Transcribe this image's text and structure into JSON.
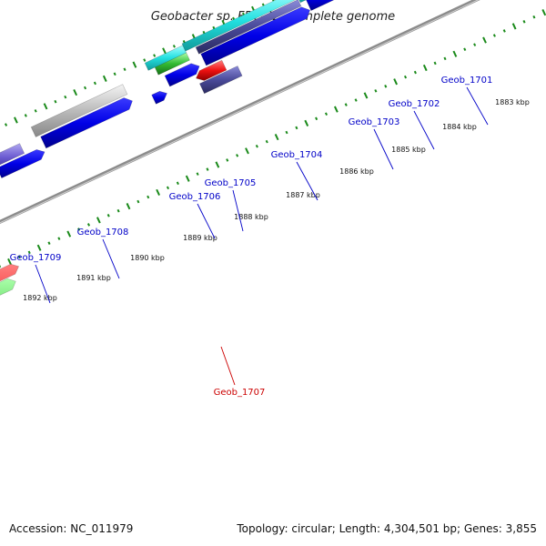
{
  "title": "Geobacter sp. FRC-32, complete genome",
  "footer": {
    "accession": "Accession: NC_011979",
    "summary": "Topology: circular; Length: 4,304,501 bp; Genes: 3,855"
  },
  "colors": {
    "backbone": "#8c8c8c",
    "tick": "#1a8a1a",
    "label_blue": "#0000c8",
    "label_red": "#cc0000",
    "cds_blue": "#0000e6",
    "cyan": "#22e0e0",
    "slate": "#4a4a9a",
    "green": "#33bb33",
    "red": "#ee1111",
    "gray": "#bbbbbb"
  },
  "kbp_labels": [
    "1883 kbp",
    "1884 kbp",
    "1885 kbp",
    "1886 kbp",
    "1887 kbp",
    "1888 kbp",
    "1889 kbp",
    "1890 kbp",
    "1891 kbp",
    "1892 kbp"
  ],
  "genes": [
    {
      "name": "Geob_1701",
      "strand": "+"
    },
    {
      "name": "Geob_1702",
      "strand": "+"
    },
    {
      "name": "Geob_1703",
      "strand": "+"
    },
    {
      "name": "Geob_1704",
      "strand": "+"
    },
    {
      "name": "Geob_1705",
      "strand": "+"
    },
    {
      "name": "Geob_1706",
      "strand": "+"
    },
    {
      "name": "Geob_1707",
      "strand": "-"
    },
    {
      "name": "Geob_1708",
      "strand": "+"
    },
    {
      "name": "Geob_1709",
      "strand": "+"
    }
  ]
}
